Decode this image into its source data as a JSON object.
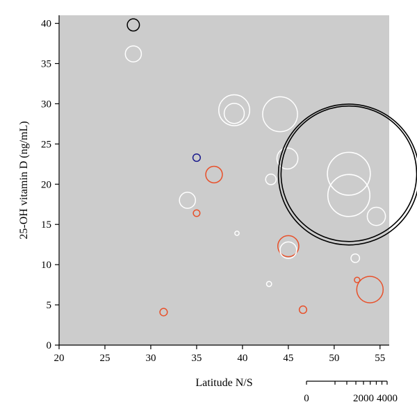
{
  "chart_data": {
    "type": "scatter",
    "subtype": "bubble",
    "title": "",
    "xlabel": "Latitude N/S",
    "ylabel": "25-OH vitamin D (ng/mL)",
    "xlim": [
      20,
      56
    ],
    "ylim": [
      0,
      41
    ],
    "x_ticks": [
      20,
      25,
      30,
      35,
      40,
      45,
      50,
      55
    ],
    "y_ticks": [
      0,
      5,
      10,
      15,
      20,
      25,
      30,
      35,
      40
    ],
    "grid": false,
    "plot_background": "#cccccc",
    "colors": {
      "white": "#ffffff",
      "red": "#e8502a",
      "black": "#000000",
      "blue": "#1a1a8c"
    },
    "size_legend": {
      "labels": [
        "0",
        "2000",
        "4000"
      ],
      "ticks": [
        0,
        500,
        1000,
        1500,
        2000,
        2500,
        3000,
        3500,
        4000
      ],
      "placement": "bottom-right"
    },
    "points": [
      {
        "x": 28.1,
        "y": 39.8,
        "size": 40,
        "color": "black"
      },
      {
        "x": 28.1,
        "y": 36.2,
        "size": 70,
        "color": "white"
      },
      {
        "x": 39.1,
        "y": 29.2,
        "size": 260,
        "color": "white"
      },
      {
        "x": 39.1,
        "y": 28.8,
        "size": 110,
        "color": "white"
      },
      {
        "x": 44.1,
        "y": 28.7,
        "size": 330,
        "color": "white"
      },
      {
        "x": 44.9,
        "y": 23.2,
        "size": 120,
        "color": "white"
      },
      {
        "x": 35.0,
        "y": 23.3,
        "size": 15,
        "color": "blue"
      },
      {
        "x": 36.9,
        "y": 21.2,
        "size": 75,
        "color": "red"
      },
      {
        "x": 43.1,
        "y": 20.6,
        "size": 30,
        "color": "white"
      },
      {
        "x": 51.6,
        "y": 21.2,
        "size": 5400,
        "color": "black"
      },
      {
        "x": 51.6,
        "y": 21.3,
        "size": 5000,
        "color": "black"
      },
      {
        "x": 51.6,
        "y": 21.3,
        "size": 500,
        "color": "white"
      },
      {
        "x": 51.6,
        "y": 18.6,
        "size": 480,
        "color": "white"
      },
      {
        "x": 34.0,
        "y": 18.0,
        "size": 70,
        "color": "white"
      },
      {
        "x": 35.0,
        "y": 16.4,
        "size": 12,
        "color": "red"
      },
      {
        "x": 54.6,
        "y": 16.0,
        "size": 90,
        "color": "white"
      },
      {
        "x": 39.4,
        "y": 13.9,
        "size": 5,
        "color": "white"
      },
      {
        "x": 45.0,
        "y": 12.3,
        "size": 120,
        "color": "red"
      },
      {
        "x": 45.0,
        "y": 11.8,
        "size": 75,
        "color": "white"
      },
      {
        "x": 52.3,
        "y": 10.8,
        "size": 20,
        "color": "white"
      },
      {
        "x": 52.5,
        "y": 8.1,
        "size": 8,
        "color": "red"
      },
      {
        "x": 42.9,
        "y": 7.6,
        "size": 7,
        "color": "white"
      },
      {
        "x": 53.9,
        "y": 6.9,
        "size": 190,
        "color": "red"
      },
      {
        "x": 46.6,
        "y": 4.4,
        "size": 15,
        "color": "red"
      },
      {
        "x": 31.4,
        "y": 4.1,
        "size": 15,
        "color": "red"
      }
    ]
  }
}
